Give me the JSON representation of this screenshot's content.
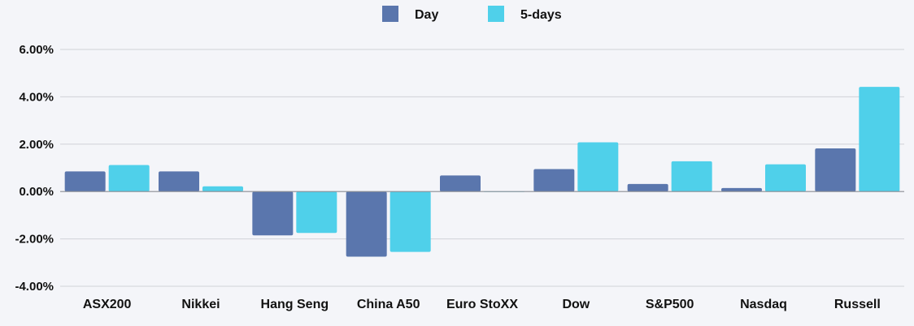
{
  "chart_data": {
    "type": "bar",
    "title": "",
    "xlabel": "",
    "ylabel": "",
    "categories": [
      "ASX200",
      "Nikkei",
      "Hang Seng",
      "China A50",
      "Euro StoXX",
      "Dow",
      "S&P500",
      "Nasdaq",
      "Russell"
    ],
    "series": [
      {
        "name": "Day",
        "color": "#5a76ad",
        "values": [
          0.85,
          0.85,
          -1.85,
          -2.75,
          0.68,
          0.95,
          0.32,
          0.15,
          1.82
        ]
      },
      {
        "name": "5-days",
        "color": "#4fd0ea",
        "values": [
          1.12,
          0.22,
          -1.75,
          -2.55,
          0.0,
          2.08,
          1.28,
          1.15,
          4.42
        ]
      }
    ],
    "ylim": [
      -4,
      6
    ],
    "yticks": [
      -4,
      -2,
      0,
      2,
      4,
      6
    ],
    "ytick_labels": [
      "-4.00%",
      "-2.00%",
      "0.00%",
      "2.00%",
      "4.00%",
      "6.00%"
    ],
    "grid": true,
    "legend_position": "top-center"
  }
}
